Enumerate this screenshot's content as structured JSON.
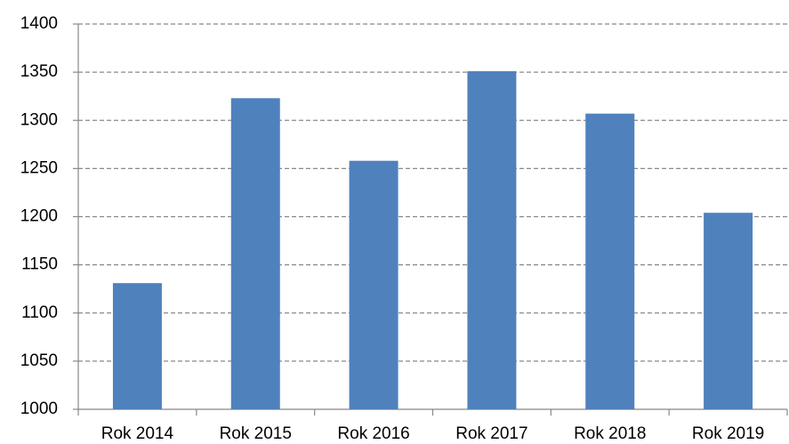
{
  "chart_data": {
    "type": "bar",
    "categories": [
      "Rok 2014",
      "Rok 2015",
      "Rok 2016",
      "Rok 2017",
      "Rok 2018",
      "Rok 2019"
    ],
    "values": [
      1131,
      1323,
      1258,
      1351,
      1307,
      1204
    ],
    "color": "#4f81bd",
    "ylim": [
      1000,
      1400
    ],
    "yticks": [
      1000,
      1050,
      1100,
      1150,
      1200,
      1250,
      1300,
      1350,
      1400
    ],
    "grid": true
  }
}
